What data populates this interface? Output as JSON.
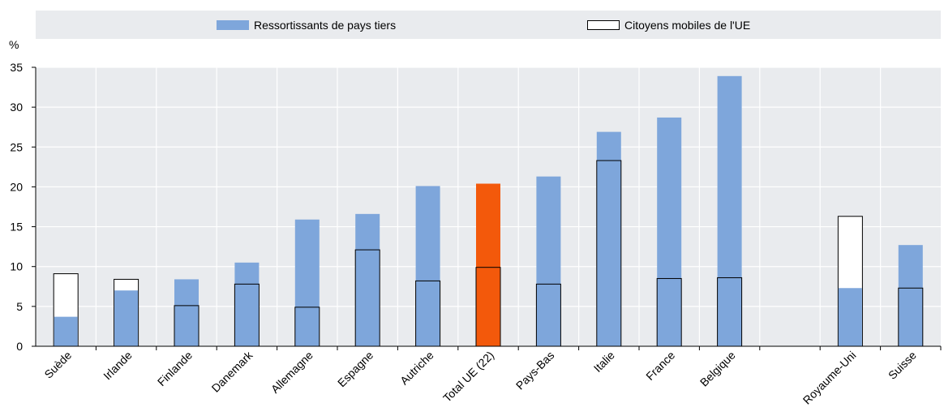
{
  "legend": {
    "series_a": "Ressortissants de pays tiers",
    "series_b": "Citoyens mobiles de l'UE"
  },
  "colors": {
    "tcn": "#7ea6db",
    "highlight": "#f3590b",
    "eu_fill": "#ffffff",
    "outline": "#000000",
    "grid": "#ffffff",
    "plot_bg": "#e9ebee"
  },
  "chart_data": {
    "type": "bar",
    "ylabel": "%",
    "ylim": [
      0,
      35
    ],
    "yticks": [
      0,
      5,
      10,
      15,
      20,
      25,
      30,
      35
    ],
    "grid": true,
    "legend_position": "top",
    "categories": [
      "Suède",
      "Irlande",
      "Finlande",
      "Danemark",
      "Allemagne",
      "Espagne",
      "Autriche",
      "Total UE (22)",
      "Pays-Bas",
      "Italie",
      "France",
      "Belgique",
      "",
      "Royaume-Uni",
      "Suisse"
    ],
    "highlight_category": "Total UE (22)",
    "series": [
      {
        "name": "Ressortissants de pays tiers",
        "style": "filled bar",
        "values": [
          3.7,
          7.0,
          8.4,
          10.5,
          15.9,
          16.6,
          20.1,
          20.4,
          21.3,
          26.9,
          28.7,
          33.9,
          null,
          7.3,
          12.7
        ]
      },
      {
        "name": "Citoyens mobiles de l'UE",
        "style": "outlined bar",
        "values": [
          9.1,
          8.4,
          5.1,
          7.8,
          4.9,
          12.1,
          8.2,
          9.9,
          7.8,
          23.3,
          8.5,
          8.6,
          null,
          16.3,
          7.3
        ]
      }
    ]
  }
}
